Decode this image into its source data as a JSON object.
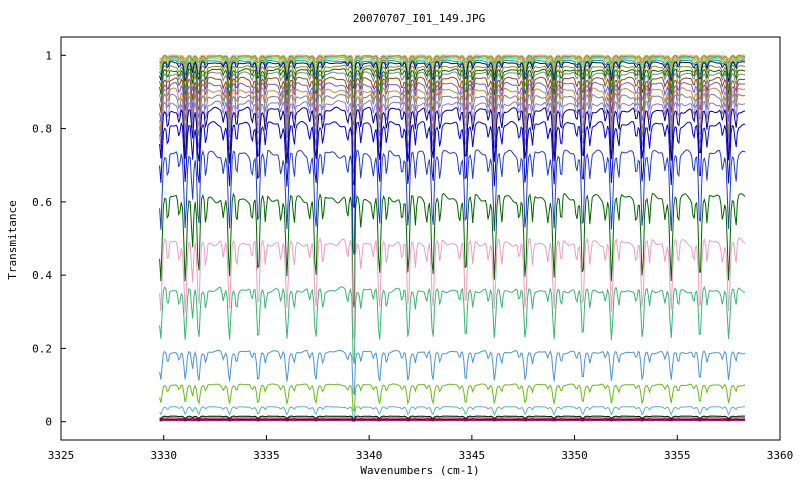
{
  "chart_data": {
    "type": "line",
    "title": "20070707_I01_149.JPG",
    "xlabel": "Wavenumbers (cm-1)",
    "ylabel": "Transmitance",
    "xlim": [
      3325,
      3360
    ],
    "ylim": [
      -0.05,
      1.05
    ],
    "x_ticks": [
      "3325",
      "3330",
      "3335",
      "3340",
      "3345",
      "3350",
      "3355",
      "3360"
    ],
    "y_ticks": [
      "0",
      "0.2",
      "0.4",
      "0.6",
      "0.8",
      "1"
    ],
    "x_range_data": [
      3329.8,
      3358.3
    ],
    "line_centers": [
      3329.85,
      3331.05,
      3331.7,
      3333.2,
      3334.6,
      3336.0,
      3337.4,
      3339.25,
      3340.5,
      3341.9,
      3343.1,
      3344.7,
      3346.1,
      3347.6,
      3349.0,
      3350.4,
      3351.8,
      3353.3,
      3354.7,
      3356.1,
      3357.5
    ],
    "grid": false,
    "legend": "none",
    "series": [
      {
        "baseline": 1.0,
        "depth": 0.01,
        "color": "#f08080"
      },
      {
        "baseline": 1.0,
        "depth": 0.015,
        "color": "#ffd700"
      },
      {
        "baseline": 0.998,
        "depth": 0.02,
        "color": "#4682b4"
      },
      {
        "baseline": 0.996,
        "depth": 0.025,
        "color": "#9acd32"
      },
      {
        "baseline": 0.994,
        "depth": 0.03,
        "color": "#ff8c00"
      },
      {
        "baseline": 0.99,
        "depth": 0.035,
        "color": "#40e0d0"
      },
      {
        "baseline": 0.985,
        "depth": 0.04,
        "color": "#2e8b57"
      },
      {
        "baseline": 0.98,
        "depth": 0.05,
        "color": "#000080"
      },
      {
        "baseline": 0.97,
        "depth": 0.06,
        "color": "#8b8b00"
      },
      {
        "baseline": 0.96,
        "depth": 0.07,
        "color": "#006400"
      },
      {
        "baseline": 0.95,
        "depth": 0.08,
        "color": "#808080"
      },
      {
        "baseline": 0.935,
        "depth": 0.09,
        "color": "#8b4513"
      },
      {
        "baseline": 0.92,
        "depth": 0.1,
        "color": "#6a5acd"
      },
      {
        "baseline": 0.905,
        "depth": 0.11,
        "color": "#cd853f"
      },
      {
        "baseline": 0.89,
        "depth": 0.12,
        "color": "#708090"
      },
      {
        "baseline": 0.87,
        "depth": 0.13,
        "color": "#9370db"
      },
      {
        "baseline": 0.85,
        "depth": 0.14,
        "color": "#000080"
      },
      {
        "baseline": 0.81,
        "depth": 0.16,
        "color": "#0000cd"
      },
      {
        "baseline": 0.73,
        "depth": 0.2,
        "color": "#1f3fbf"
      },
      {
        "baseline": 0.61,
        "depth": 0.22,
        "color": "#006400"
      },
      {
        "baseline": 0.49,
        "depth": 0.19,
        "color": "#e6a0c0"
      },
      {
        "baseline": 0.36,
        "depth": 0.14,
        "color": "#3cb371"
      },
      {
        "baseline": 0.19,
        "depth": 0.08,
        "color": "#4f94cd"
      },
      {
        "baseline": 0.1,
        "depth": 0.05,
        "color": "#6bb81c"
      },
      {
        "baseline": 0.04,
        "depth": 0.02,
        "color": "#5fb3b3"
      },
      {
        "baseline": 0.015,
        "depth": 0.006,
        "color": "#000000"
      },
      {
        "baseline": 0.01,
        "depth": 0.004,
        "color": "#8b0000"
      },
      {
        "baseline": 0.006,
        "depth": 0.002,
        "color": "#4b0082"
      },
      {
        "baseline": 0.003,
        "depth": 0.001,
        "color": "#800080"
      }
    ]
  }
}
